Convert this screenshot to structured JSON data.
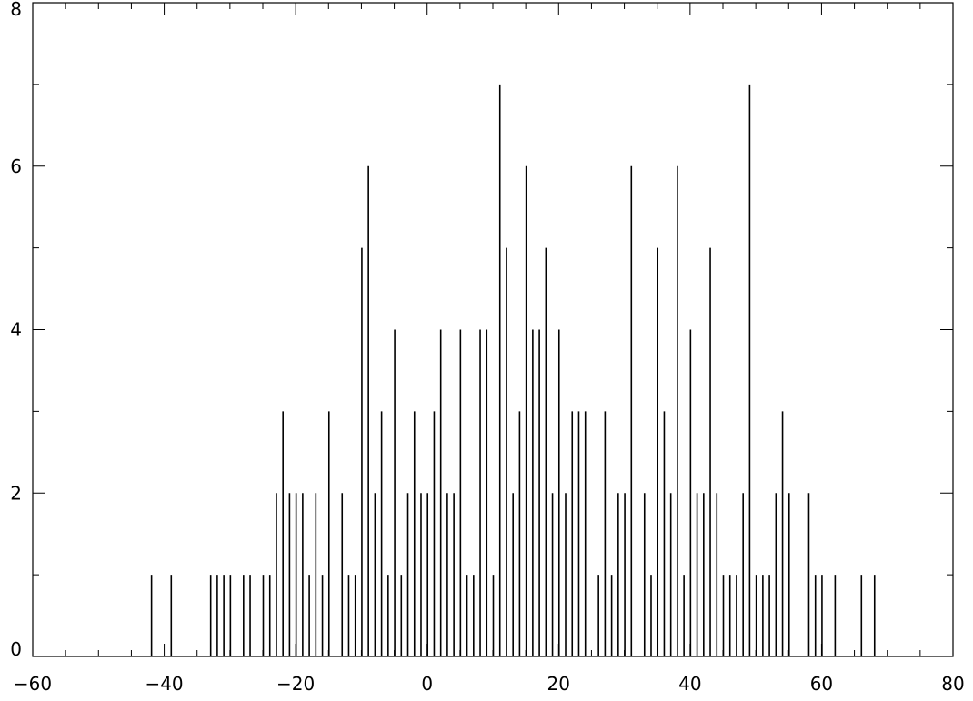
{
  "chart_data": {
    "type": "bar",
    "style": "impulse-histogram",
    "title": "",
    "xlabel": "",
    "ylabel": "",
    "xlim": [
      -60,
      80
    ],
    "ylim": [
      0,
      8
    ],
    "x_major_ticks": [
      -60,
      -40,
      -20,
      0,
      20,
      40,
      60,
      80
    ],
    "y_major_ticks": [
      0,
      2,
      4,
      6,
      8
    ],
    "x_tick_labels": [
      "−60",
      "−40",
      "−20",
      "0",
      "20",
      "40",
      "60",
      "80"
    ],
    "y_tick_labels": [
      "0",
      "2",
      "4",
      "6",
      "8"
    ],
    "x_minor_step": 5,
    "y_minor_step": 1,
    "grid": false,
    "legend": "none",
    "bar_color": "#000000",
    "x": [
      -42,
      -39,
      -33,
      -32,
      -31,
      -30,
      -28,
      -27,
      -25,
      -24,
      -23,
      -22,
      -21,
      -20,
      -19,
      -18,
      -17,
      -16,
      -15,
      -13,
      -12,
      -11,
      -10,
      -9,
      -8,
      -7,
      -6,
      -5,
      -4,
      -3,
      -2,
      -1,
      0,
      1,
      2,
      3,
      4,
      5,
      6,
      7,
      8,
      9,
      10,
      11,
      12,
      13,
      14,
      15,
      16,
      17,
      18,
      19,
      20,
      21,
      22,
      23,
      24,
      26,
      27,
      28,
      29,
      30,
      31,
      33,
      34,
      35,
      36,
      37,
      38,
      39,
      40,
      41,
      42,
      43,
      44,
      45,
      46,
      47,
      48,
      49,
      50,
      51,
      52,
      53,
      54,
      55,
      58,
      59,
      60,
      62,
      66,
      68
    ],
    "values": [
      1,
      1,
      1,
      1,
      1,
      1,
      1,
      1,
      1,
      1,
      2,
      3,
      2,
      2,
      2,
      1,
      2,
      1,
      3,
      2,
      1,
      1,
      5,
      6,
      2,
      3,
      1,
      4,
      1,
      2,
      3,
      2,
      2,
      3,
      4,
      2,
      2,
      4,
      1,
      1,
      4,
      4,
      1,
      7,
      5,
      2,
      3,
      6,
      4,
      4,
      5,
      2,
      4,
      2,
      3,
      3,
      3,
      1,
      3,
      1,
      2,
      2,
      6,
      2,
      1,
      5,
      3,
      2,
      6,
      1,
      4,
      2,
      2,
      5,
      2,
      1,
      1,
      1,
      2,
      7,
      1,
      1,
      1,
      2,
      3,
      2,
      2,
      1,
      1,
      1,
      1,
      1
    ]
  }
}
